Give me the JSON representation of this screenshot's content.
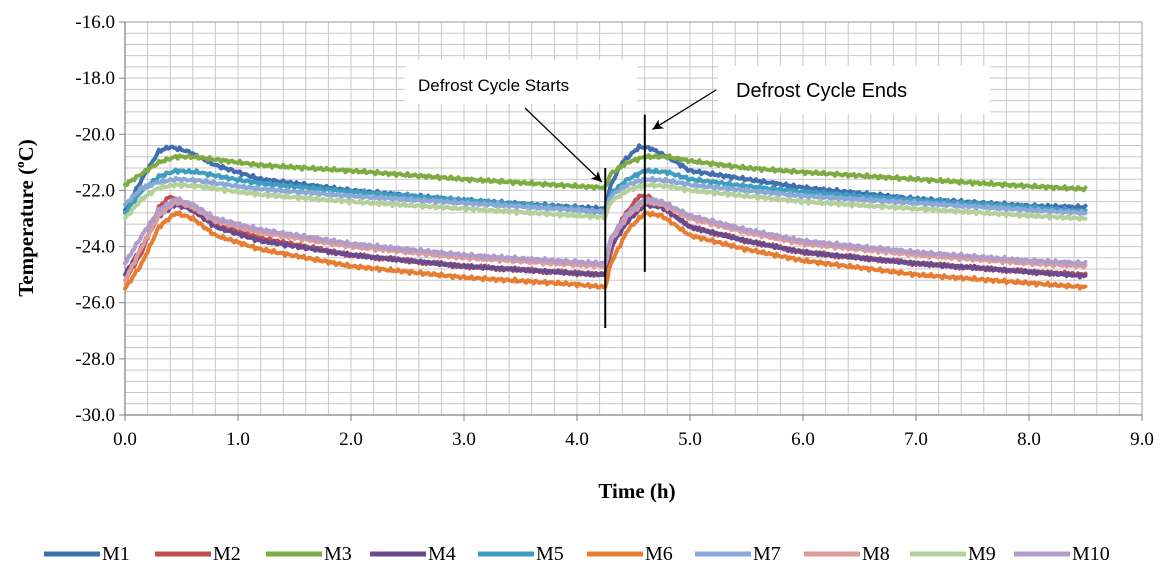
{
  "chart_data": {
    "type": "line",
    "title": "",
    "xlabel": "Time (h)",
    "ylabel_main": "Temperature (",
    "ylabel_sup": "o",
    "ylabel_end": "C)",
    "xlim": [
      0,
      9
    ],
    "ylim": [
      -30,
      -16
    ],
    "x_ticks": [
      "0.0",
      "1.0",
      "2.0",
      "3.0",
      "4.0",
      "5.0",
      "6.0",
      "7.0",
      "8.0",
      "9.0"
    ],
    "y_ticks": [
      "-16.0",
      "-18.0",
      "-20.0",
      "-22.0",
      "-24.0",
      "-26.0",
      "-28.0",
      "-30.0"
    ],
    "grid": true,
    "legend_position": "bottom",
    "annotations": [
      {
        "text": "Defrost Cycle Starts",
        "x": 4.25,
        "y_from": -21.2,
        "y_to": -26.9,
        "arrow_to": [
          4.22,
          -21.7
        ]
      },
      {
        "text": "Defrost Cycle Ends",
        "x": 4.6,
        "y_from": -19.3,
        "y_to": -24.9,
        "arrow_to": [
          4.65,
          -19.9
        ]
      }
    ],
    "series": [
      {
        "name": "M1",
        "color": "#3f6fb0",
        "x": [
          0,
          0.15,
          0.3,
          0.4,
          0.55,
          0.8,
          1.2,
          2,
          3,
          4,
          4.25,
          4.3,
          4.4,
          4.55,
          4.65,
          4.8,
          5,
          5.5,
          6,
          7,
          8,
          8.5
        ],
        "y": [
          -22.7,
          -21.6,
          -20.6,
          -20.45,
          -20.6,
          -21.1,
          -21.6,
          -22,
          -22.35,
          -22.6,
          -22.65,
          -21.8,
          -21,
          -20.45,
          -20.5,
          -20.8,
          -21.3,
          -21.6,
          -21.9,
          -22.3,
          -22.55,
          -22.6
        ]
      },
      {
        "name": "M2",
        "color": "#c0504d",
        "x": [
          0,
          0.15,
          0.3,
          0.4,
          0.55,
          0.8,
          1.2,
          2,
          3,
          4,
          4.25,
          4.3,
          4.4,
          4.55,
          4.65,
          4.8,
          5,
          5.5,
          6,
          7,
          8,
          8.5
        ],
        "y": [
          -25.2,
          -24.2,
          -22.6,
          -22.2,
          -22.6,
          -23.2,
          -23.7,
          -24.3,
          -24.7,
          -24.95,
          -25.0,
          -24.2,
          -23,
          -22.2,
          -22.25,
          -22.7,
          -23.3,
          -23.8,
          -24.2,
          -24.6,
          -24.9,
          -25.0
        ]
      },
      {
        "name": "M3",
        "color": "#7fab43",
        "x": [
          0,
          0.15,
          0.3,
          0.45,
          0.6,
          0.9,
          1.2,
          2,
          3,
          4,
          4.25,
          4.3,
          4.45,
          4.6,
          4.8,
          5,
          5.5,
          6,
          7,
          8,
          8.5
        ],
        "y": [
          -21.8,
          -21.4,
          -21.0,
          -20.8,
          -20.8,
          -20.95,
          -21.1,
          -21.3,
          -21.6,
          -21.85,
          -21.9,
          -21.4,
          -21.0,
          -20.8,
          -20.8,
          -20.95,
          -21.2,
          -21.35,
          -21.6,
          -21.85,
          -21.95
        ]
      },
      {
        "name": "M4",
        "color": "#6a4a8e",
        "x": [
          0,
          0.15,
          0.3,
          0.45,
          0.6,
          0.8,
          1.2,
          2,
          3,
          4,
          4.25,
          4.3,
          4.45,
          4.6,
          4.75,
          5,
          5.5,
          6,
          7,
          8,
          8.5
        ],
        "y": [
          -25.0,
          -24.0,
          -22.9,
          -22.5,
          -22.7,
          -23.3,
          -23.8,
          -24.3,
          -24.7,
          -24.95,
          -25.0,
          -24.0,
          -23.1,
          -22.5,
          -22.6,
          -23.3,
          -23.8,
          -24.2,
          -24.6,
          -24.9,
          -25.05
        ]
      },
      {
        "name": "M5",
        "color": "#3e9ec0",
        "x": [
          0,
          0.15,
          0.3,
          0.45,
          0.65,
          0.9,
          1.2,
          2,
          3,
          4,
          4.25,
          4.3,
          4.45,
          4.6,
          4.8,
          5,
          5.5,
          6,
          7,
          8,
          8.5
        ],
        "y": [
          -22.8,
          -22.0,
          -21.5,
          -21.3,
          -21.35,
          -21.55,
          -21.75,
          -22.05,
          -22.35,
          -22.65,
          -22.8,
          -22.1,
          -21.6,
          -21.3,
          -21.35,
          -21.6,
          -21.85,
          -22.05,
          -22.35,
          -22.6,
          -22.75
        ]
      },
      {
        "name": "M6",
        "color": "#e77d33",
        "x": [
          0,
          0.15,
          0.3,
          0.45,
          0.6,
          0.8,
          1.2,
          2,
          3,
          4,
          4.25,
          4.3,
          4.45,
          4.6,
          4.75,
          5,
          5.5,
          6,
          7,
          8,
          8.5
        ],
        "y": [
          -25.5,
          -24.6,
          -23.3,
          -22.8,
          -23.0,
          -23.6,
          -24.1,
          -24.7,
          -25.1,
          -25.35,
          -25.45,
          -24.6,
          -23.4,
          -22.8,
          -22.9,
          -23.6,
          -24.1,
          -24.5,
          -25.0,
          -25.3,
          -25.45
        ]
      },
      {
        "name": "M7",
        "color": "#8ba9d8",
        "x": [
          0,
          0.15,
          0.3,
          0.45,
          0.65,
          0.9,
          1.2,
          2,
          3,
          4,
          4.25,
          4.3,
          4.45,
          4.6,
          4.8,
          5,
          5.5,
          6,
          7,
          8,
          8.5
        ],
        "y": [
          -22.5,
          -21.9,
          -21.7,
          -21.6,
          -21.65,
          -21.8,
          -21.95,
          -22.2,
          -22.45,
          -22.7,
          -22.75,
          -22.2,
          -21.8,
          -21.6,
          -21.65,
          -21.8,
          -22.0,
          -22.2,
          -22.45,
          -22.7,
          -22.8
        ]
      },
      {
        "name": "M8",
        "color": "#dd9d9a",
        "x": [
          0,
          0.15,
          0.3,
          0.45,
          0.6,
          0.8,
          1.2,
          2,
          3,
          4,
          4.25,
          4.3,
          4.45,
          4.6,
          4.75,
          5,
          5.5,
          6,
          7,
          8,
          8.5
        ],
        "y": [
          -25.2,
          -24.0,
          -22.9,
          -22.4,
          -22.6,
          -23.1,
          -23.5,
          -24.0,
          -24.4,
          -24.65,
          -24.7,
          -23.8,
          -22.9,
          -22.4,
          -22.5,
          -23.0,
          -23.5,
          -23.9,
          -24.3,
          -24.6,
          -24.7
        ]
      },
      {
        "name": "M9",
        "color": "#b5d09a",
        "x": [
          0,
          0.15,
          0.3,
          0.45,
          0.65,
          0.9,
          1.2,
          2,
          3,
          4,
          4.25,
          4.3,
          4.45,
          4.6,
          4.8,
          5,
          5.5,
          6,
          7,
          8,
          8.5
        ],
        "y": [
          -23.0,
          -22.3,
          -21.9,
          -21.8,
          -21.85,
          -22.0,
          -22.15,
          -22.4,
          -22.65,
          -22.9,
          -22.95,
          -22.4,
          -22.0,
          -21.8,
          -21.85,
          -22.0,
          -22.2,
          -22.4,
          -22.65,
          -22.9,
          -23.0
        ]
      },
      {
        "name": "M10",
        "color": "#b19ccc",
        "x": [
          0,
          0.15,
          0.3,
          0.45,
          0.6,
          0.8,
          1.2,
          2,
          3,
          4,
          4.25,
          4.3,
          4.45,
          4.6,
          4.75,
          5,
          5.5,
          6,
          7,
          8,
          8.5
        ],
        "y": [
          -24.6,
          -23.6,
          -22.7,
          -22.3,
          -22.5,
          -23.0,
          -23.4,
          -23.9,
          -24.3,
          -24.55,
          -24.6,
          -23.7,
          -22.8,
          -22.3,
          -22.4,
          -22.9,
          -23.4,
          -23.8,
          -24.2,
          -24.5,
          -24.6
        ]
      }
    ]
  }
}
